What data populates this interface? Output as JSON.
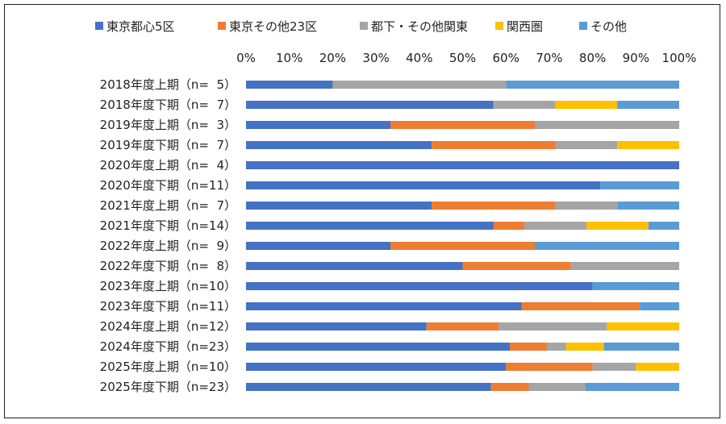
{
  "chart_data": {
    "type": "bar",
    "orientation": "horizontal",
    "stacked": "percent",
    "title": "",
    "xlabel": "",
    "ylabel": "",
    "xlim": [
      0,
      100
    ],
    "x_ticks": [
      "0%",
      "10%",
      "20%",
      "30%",
      "40%",
      "50%",
      "60%",
      "70%",
      "80%",
      "90%",
      "100%"
    ],
    "legend_position": "top",
    "grid": false,
    "categories": [
      "2018年度上期（n=  5）",
      "2018年度下期（n=  7）",
      "2019年度上期（n=  3）",
      "2019年度下期（n=  7）",
      "2020年度上期（n=  4）",
      "2020年度下期（n=11）",
      "2021年度上期（n=  7）",
      "2021年度下期（n=14）",
      "2022年度上期（n=  9）",
      "2022年度下期（n=  8）",
      "2023年度上期（n=10）",
      "2023年度下期（n=11）",
      "2024年度上期（n=12）",
      "2024年度下期（n=23）",
      "2025年度上期（n=10）",
      "2025年度下期（n=23）"
    ],
    "series": [
      {
        "name": "東京都心5区",
        "color": "#4472c4",
        "values": [
          20,
          57.1,
          33.3,
          42.9,
          100,
          81.8,
          42.9,
          57.1,
          33.3,
          50,
          80,
          63.6,
          41.7,
          60.9,
          60,
          56.5
        ]
      },
      {
        "name": "東京その他23区",
        "color": "#ed7d31",
        "values": [
          0,
          0,
          33.3,
          28.6,
          0,
          0,
          28.6,
          7.1,
          33.3,
          25,
          0,
          27.3,
          16.7,
          8.7,
          20,
          8.7
        ]
      },
      {
        "name": "都下・その他関東",
        "color": "#a5a5a5",
        "values": [
          40,
          14.3,
          33.3,
          14.3,
          0,
          0,
          14.3,
          14.3,
          0,
          25,
          0,
          0,
          25,
          4.3,
          10,
          13
        ]
      },
      {
        "name": "関西圏",
        "color": "#ffc000",
        "values": [
          0,
          14.3,
          0,
          14.3,
          0,
          0,
          0,
          14.3,
          0,
          0,
          0,
          0,
          16.7,
          8.7,
          10,
          0
        ]
      },
      {
        "name": "その他",
        "color": "#5b9bd5",
        "values": [
          40,
          14.3,
          0,
          0,
          0,
          18.2,
          14.3,
          7.1,
          33.3,
          0,
          20,
          9.1,
          0,
          17.4,
          0,
          21.7
        ]
      }
    ]
  }
}
